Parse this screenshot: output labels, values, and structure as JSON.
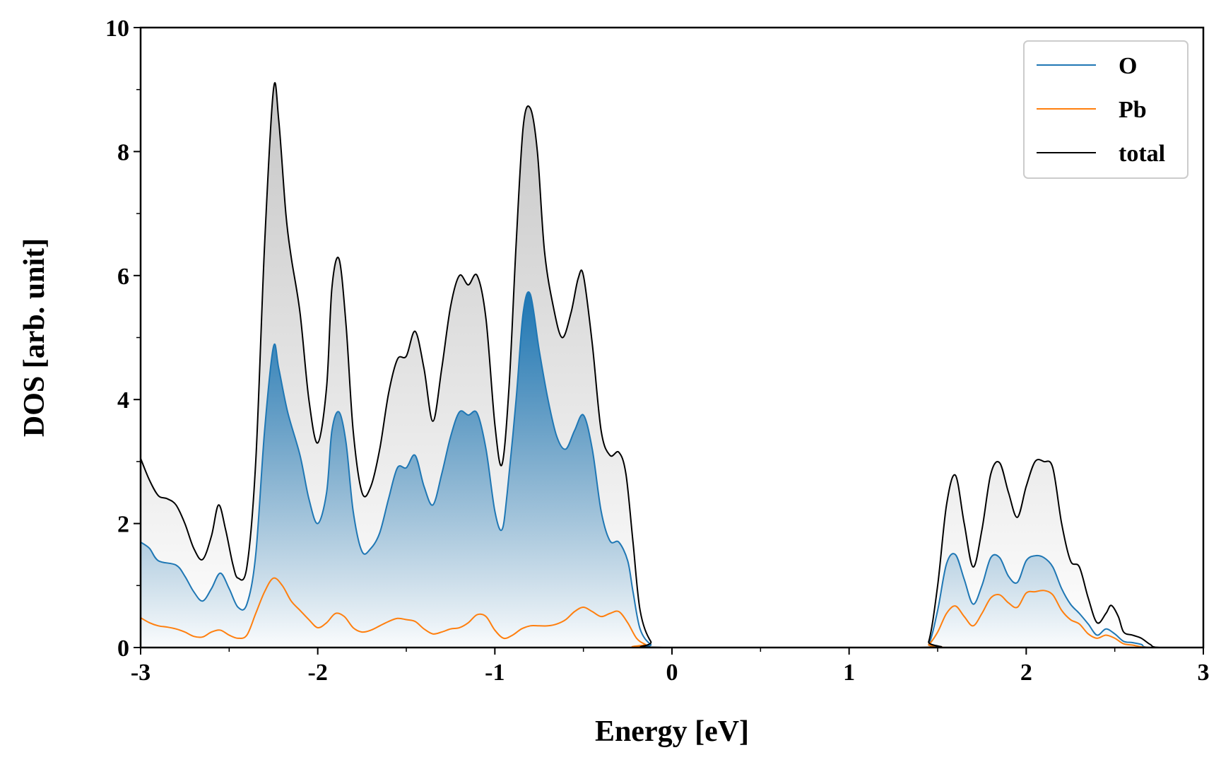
{
  "chart_data": {
    "type": "area",
    "xlabel": "Energy [eV]",
    "ylabel": "DOS [arb. unit]",
    "xlim": [
      -3,
      3
    ],
    "ylim": [
      0,
      10
    ],
    "x_ticks": [
      -3,
      -2,
      -1,
      0,
      1,
      2,
      3
    ],
    "x_tick_labels": [
      "-3",
      "-2",
      "-1",
      "0",
      "1",
      "2",
      "3"
    ],
    "y_ticks": [
      0,
      2,
      4,
      6,
      8,
      10
    ],
    "y_tick_labels": [
      "0",
      "2",
      "4",
      "6",
      "8",
      "10"
    ],
    "x_minor_step": 0.5,
    "y_minor_step": 1,
    "grid": false,
    "legend_position": "top-right",
    "series": [
      {
        "name": "O",
        "color": "#1f77b4",
        "fill": "gradient-blue",
        "points": [
          [
            -3.0,
            1.7
          ],
          [
            -2.95,
            1.6
          ],
          [
            -2.9,
            1.4
          ],
          [
            -2.8,
            1.33
          ],
          [
            -2.75,
            1.15
          ],
          [
            -2.7,
            0.9
          ],
          [
            -2.65,
            0.75
          ],
          [
            -2.6,
            0.95
          ],
          [
            -2.55,
            1.2
          ],
          [
            -2.5,
            0.95
          ],
          [
            -2.45,
            0.65
          ],
          [
            -2.4,
            0.7
          ],
          [
            -2.35,
            1.5
          ],
          [
            -2.3,
            3.5
          ],
          [
            -2.25,
            4.85
          ],
          [
            -2.22,
            4.5
          ],
          [
            -2.17,
            3.8
          ],
          [
            -2.1,
            3.1
          ],
          [
            -2.05,
            2.4
          ],
          [
            -2.0,
            2.0
          ],
          [
            -1.95,
            2.5
          ],
          [
            -1.92,
            3.5
          ],
          [
            -1.88,
            3.8
          ],
          [
            -1.84,
            3.3
          ],
          [
            -1.8,
            2.2
          ],
          [
            -1.75,
            1.55
          ],
          [
            -1.7,
            1.6
          ],
          [
            -1.65,
            1.85
          ],
          [
            -1.6,
            2.4
          ],
          [
            -1.55,
            2.9
          ],
          [
            -1.5,
            2.9
          ],
          [
            -1.45,
            3.1
          ],
          [
            -1.4,
            2.6
          ],
          [
            -1.35,
            2.3
          ],
          [
            -1.3,
            2.8
          ],
          [
            -1.25,
            3.4
          ],
          [
            -1.2,
            3.8
          ],
          [
            -1.15,
            3.75
          ],
          [
            -1.1,
            3.78
          ],
          [
            -1.05,
            3.2
          ],
          [
            -1.0,
            2.2
          ],
          [
            -0.96,
            1.9
          ],
          [
            -0.93,
            2.5
          ],
          [
            -0.88,
            4.0
          ],
          [
            -0.84,
            5.4
          ],
          [
            -0.8,
            5.7
          ],
          [
            -0.75,
            4.8
          ],
          [
            -0.7,
            4.0
          ],
          [
            -0.65,
            3.4
          ],
          [
            -0.6,
            3.2
          ],
          [
            -0.55,
            3.5
          ],
          [
            -0.5,
            3.75
          ],
          [
            -0.45,
            3.2
          ],
          [
            -0.4,
            2.2
          ],
          [
            -0.35,
            1.72
          ],
          [
            -0.3,
            1.7
          ],
          [
            -0.25,
            1.4
          ],
          [
            -0.22,
            0.9
          ],
          [
            -0.18,
            0.3
          ],
          [
            -0.12,
            0.05
          ],
          [
            -0.05,
            0.0
          ],
          [
            1.4,
            0.0
          ],
          [
            1.45,
            0.05
          ],
          [
            1.5,
            0.6
          ],
          [
            1.55,
            1.35
          ],
          [
            1.6,
            1.5
          ],
          [
            1.65,
            1.1
          ],
          [
            1.7,
            0.7
          ],
          [
            1.75,
            1.0
          ],
          [
            1.8,
            1.45
          ],
          [
            1.85,
            1.45
          ],
          [
            1.9,
            1.15
          ],
          [
            1.95,
            1.05
          ],
          [
            2.0,
            1.4
          ],
          [
            2.05,
            1.48
          ],
          [
            2.1,
            1.45
          ],
          [
            2.15,
            1.3
          ],
          [
            2.2,
            0.95
          ],
          [
            2.25,
            0.7
          ],
          [
            2.3,
            0.55
          ],
          [
            2.35,
            0.38
          ],
          [
            2.4,
            0.2
          ],
          [
            2.45,
            0.3
          ],
          [
            2.5,
            0.22
          ],
          [
            2.55,
            0.1
          ],
          [
            2.6,
            0.08
          ],
          [
            2.65,
            0.05
          ],
          [
            2.7,
            0.0
          ],
          [
            3.0,
            0.0
          ]
        ]
      },
      {
        "name": "Pb",
        "color": "#ff7f0e",
        "fill": "none",
        "points": [
          [
            -3.0,
            0.48
          ],
          [
            -2.95,
            0.4
          ],
          [
            -2.9,
            0.35
          ],
          [
            -2.85,
            0.33
          ],
          [
            -2.8,
            0.3
          ],
          [
            -2.75,
            0.25
          ],
          [
            -2.7,
            0.18
          ],
          [
            -2.65,
            0.17
          ],
          [
            -2.6,
            0.25
          ],
          [
            -2.55,
            0.28
          ],
          [
            -2.5,
            0.2
          ],
          [
            -2.45,
            0.15
          ],
          [
            -2.4,
            0.2
          ],
          [
            -2.35,
            0.55
          ],
          [
            -2.3,
            0.9
          ],
          [
            -2.25,
            1.12
          ],
          [
            -2.2,
            1.0
          ],
          [
            -2.15,
            0.75
          ],
          [
            -2.1,
            0.6
          ],
          [
            -2.05,
            0.45
          ],
          [
            -2.0,
            0.32
          ],
          [
            -1.95,
            0.4
          ],
          [
            -1.9,
            0.55
          ],
          [
            -1.85,
            0.5
          ],
          [
            -1.8,
            0.32
          ],
          [
            -1.75,
            0.25
          ],
          [
            -1.7,
            0.28
          ],
          [
            -1.65,
            0.35
          ],
          [
            -1.6,
            0.42
          ],
          [
            -1.55,
            0.47
          ],
          [
            -1.5,
            0.45
          ],
          [
            -1.45,
            0.42
          ],
          [
            -1.4,
            0.3
          ],
          [
            -1.35,
            0.22
          ],
          [
            -1.3,
            0.25
          ],
          [
            -1.25,
            0.3
          ],
          [
            -1.2,
            0.32
          ],
          [
            -1.15,
            0.4
          ],
          [
            -1.1,
            0.53
          ],
          [
            -1.05,
            0.5
          ],
          [
            -1.0,
            0.28
          ],
          [
            -0.95,
            0.15
          ],
          [
            -0.9,
            0.2
          ],
          [
            -0.85,
            0.3
          ],
          [
            -0.8,
            0.35
          ],
          [
            -0.75,
            0.35
          ],
          [
            -0.7,
            0.35
          ],
          [
            -0.65,
            0.38
          ],
          [
            -0.6,
            0.45
          ],
          [
            -0.55,
            0.58
          ],
          [
            -0.5,
            0.65
          ],
          [
            -0.45,
            0.58
          ],
          [
            -0.4,
            0.5
          ],
          [
            -0.35,
            0.55
          ],
          [
            -0.3,
            0.58
          ],
          [
            -0.25,
            0.4
          ],
          [
            -0.2,
            0.15
          ],
          [
            -0.15,
            0.05
          ],
          [
            -0.1,
            0.0
          ],
          [
            1.4,
            0.0
          ],
          [
            1.45,
            0.05
          ],
          [
            1.5,
            0.25
          ],
          [
            1.55,
            0.55
          ],
          [
            1.6,
            0.67
          ],
          [
            1.65,
            0.5
          ],
          [
            1.7,
            0.35
          ],
          [
            1.75,
            0.55
          ],
          [
            1.8,
            0.8
          ],
          [
            1.85,
            0.85
          ],
          [
            1.9,
            0.72
          ],
          [
            1.95,
            0.65
          ],
          [
            2.0,
            0.88
          ],
          [
            2.05,
            0.9
          ],
          [
            2.1,
            0.92
          ],
          [
            2.15,
            0.85
          ],
          [
            2.2,
            0.6
          ],
          [
            2.25,
            0.45
          ],
          [
            2.3,
            0.38
          ],
          [
            2.35,
            0.22
          ],
          [
            2.4,
            0.15
          ],
          [
            2.45,
            0.2
          ],
          [
            2.5,
            0.15
          ],
          [
            2.55,
            0.06
          ],
          [
            2.6,
            0.04
          ],
          [
            2.7,
            0.0
          ],
          [
            3.0,
            0.0
          ]
        ]
      },
      {
        "name": "total",
        "color": "#000000",
        "fill": "gradient-gray",
        "points": [
          [
            -3.0,
            3.05
          ],
          [
            -2.95,
            2.7
          ],
          [
            -2.9,
            2.45
          ],
          [
            -2.85,
            2.4
          ],
          [
            -2.8,
            2.3
          ],
          [
            -2.75,
            2.0
          ],
          [
            -2.7,
            1.6
          ],
          [
            -2.65,
            1.42
          ],
          [
            -2.6,
            1.8
          ],
          [
            -2.56,
            2.3
          ],
          [
            -2.52,
            1.9
          ],
          [
            -2.48,
            1.35
          ],
          [
            -2.45,
            1.12
          ],
          [
            -2.4,
            1.3
          ],
          [
            -2.35,
            3.0
          ],
          [
            -2.3,
            6.5
          ],
          [
            -2.25,
            9.0
          ],
          [
            -2.22,
            8.5
          ],
          [
            -2.18,
            7.0
          ],
          [
            -2.15,
            6.3
          ],
          [
            -2.1,
            5.4
          ],
          [
            -2.05,
            4.0
          ],
          [
            -2.0,
            3.3
          ],
          [
            -1.95,
            4.2
          ],
          [
            -1.92,
            5.8
          ],
          [
            -1.88,
            6.27
          ],
          [
            -1.84,
            5.2
          ],
          [
            -1.8,
            3.5
          ],
          [
            -1.75,
            2.5
          ],
          [
            -1.7,
            2.6
          ],
          [
            -1.65,
            3.2
          ],
          [
            -1.6,
            4.1
          ],
          [
            -1.55,
            4.65
          ],
          [
            -1.5,
            4.7
          ],
          [
            -1.45,
            5.1
          ],
          [
            -1.4,
            4.5
          ],
          [
            -1.35,
            3.65
          ],
          [
            -1.3,
            4.5
          ],
          [
            -1.25,
            5.5
          ],
          [
            -1.2,
            6.0
          ],
          [
            -1.15,
            5.85
          ],
          [
            -1.1,
            6.0
          ],
          [
            -1.05,
            5.3
          ],
          [
            -1.0,
            3.6
          ],
          [
            -0.96,
            2.95
          ],
          [
            -0.92,
            4.2
          ],
          [
            -0.88,
            6.5
          ],
          [
            -0.84,
            8.4
          ],
          [
            -0.8,
            8.7
          ],
          [
            -0.76,
            8.0
          ],
          [
            -0.72,
            6.4
          ],
          [
            -0.67,
            5.5
          ],
          [
            -0.62,
            5.0
          ],
          [
            -0.57,
            5.4
          ],
          [
            -0.53,
            5.95
          ],
          [
            -0.5,
            6.0
          ],
          [
            -0.45,
            4.9
          ],
          [
            -0.4,
            3.5
          ],
          [
            -0.35,
            3.1
          ],
          [
            -0.3,
            3.15
          ],
          [
            -0.26,
            2.8
          ],
          [
            -0.22,
            1.7
          ],
          [
            -0.18,
            0.6
          ],
          [
            -0.12,
            0.1
          ],
          [
            -0.05,
            0.0
          ],
          [
            1.4,
            0.0
          ],
          [
            1.45,
            0.1
          ],
          [
            1.5,
            1.0
          ],
          [
            1.55,
            2.3
          ],
          [
            1.6,
            2.78
          ],
          [
            1.65,
            2.0
          ],
          [
            1.7,
            1.3
          ],
          [
            1.75,
            1.9
          ],
          [
            1.8,
            2.8
          ],
          [
            1.85,
            2.98
          ],
          [
            1.9,
            2.5
          ],
          [
            1.95,
            2.1
          ],
          [
            2.0,
            2.6
          ],
          [
            2.05,
            3.0
          ],
          [
            2.1,
            3.0
          ],
          [
            2.15,
            2.9
          ],
          [
            2.2,
            2.0
          ],
          [
            2.25,
            1.4
          ],
          [
            2.3,
            1.3
          ],
          [
            2.35,
            0.8
          ],
          [
            2.4,
            0.4
          ],
          [
            2.45,
            0.55
          ],
          [
            2.48,
            0.68
          ],
          [
            2.52,
            0.5
          ],
          [
            2.55,
            0.25
          ],
          [
            2.6,
            0.2
          ],
          [
            2.65,
            0.15
          ],
          [
            2.7,
            0.05
          ],
          [
            2.75,
            0.0
          ],
          [
            3.0,
            0.0
          ]
        ]
      }
    ]
  }
}
